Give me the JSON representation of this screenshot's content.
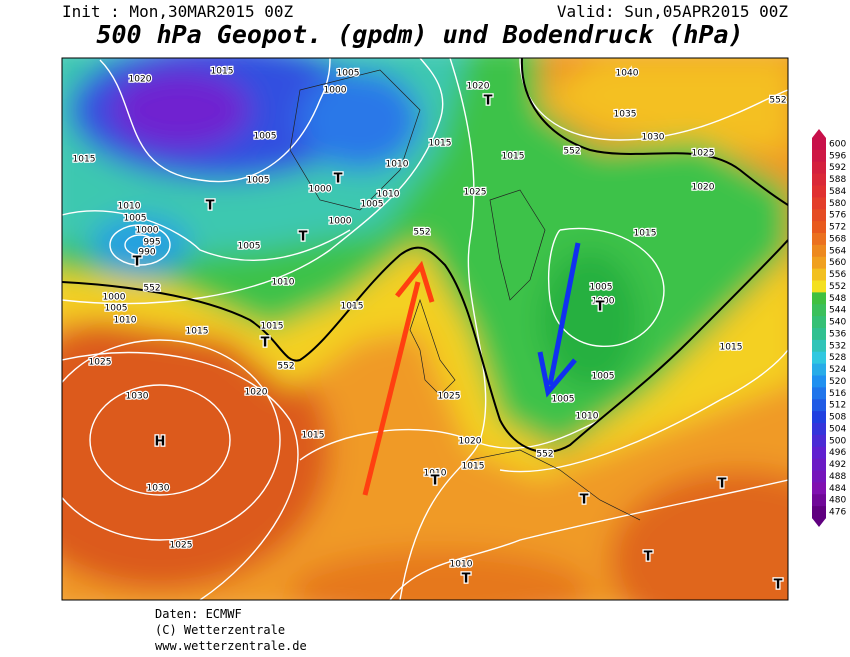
{
  "header": {
    "init": "Init : Mon,30MAR2015 00Z",
    "valid": "Valid: Sun,05APR2015 00Z",
    "title": "500 hPa Geopot. (gpdm) und Bodendruck (hPa)"
  },
  "legend": {
    "values": [
      600,
      596,
      592,
      588,
      584,
      580,
      576,
      572,
      568,
      564,
      560,
      556,
      552,
      548,
      544,
      540,
      536,
      532,
      528,
      524,
      520,
      516,
      512,
      508,
      504,
      500,
      496,
      492,
      488,
      484,
      480,
      476
    ]
  },
  "map_labels": [
    "1020",
    "1015",
    "1005",
    "1000",
    "1020",
    "T",
    "1040",
    "552",
    "1035",
    "1030",
    "552",
    "1025",
    "1020",
    "1015",
    "T",
    "1005",
    "1005",
    "T",
    "1000",
    "1010",
    "1015",
    "1015",
    "1010",
    "1005",
    "1000",
    "T",
    "1025",
    "1015",
    "1010",
    "1005",
    "1000",
    "995",
    "990",
    "T",
    "1005",
    "552",
    "1010",
    "1000",
    "1005",
    "1010",
    "552",
    "1015",
    "1015",
    "1015",
    "T",
    "552",
    "1005",
    "1000",
    "T",
    "1015",
    "1025",
    "1030",
    "H",
    "1020",
    "1025",
    "1005",
    "1005",
    "1010",
    "1015",
    "1020",
    "1015",
    "1010",
    "T",
    "552",
    "1030",
    "T",
    "T",
    "1025",
    "1010",
    "T",
    "T",
    "T"
  ],
  "footer": {
    "lines": [
      "Daten: ECMWF",
      "(C) Wetterzentrale",
      "www.wetterzentrale.de"
    ]
  }
}
